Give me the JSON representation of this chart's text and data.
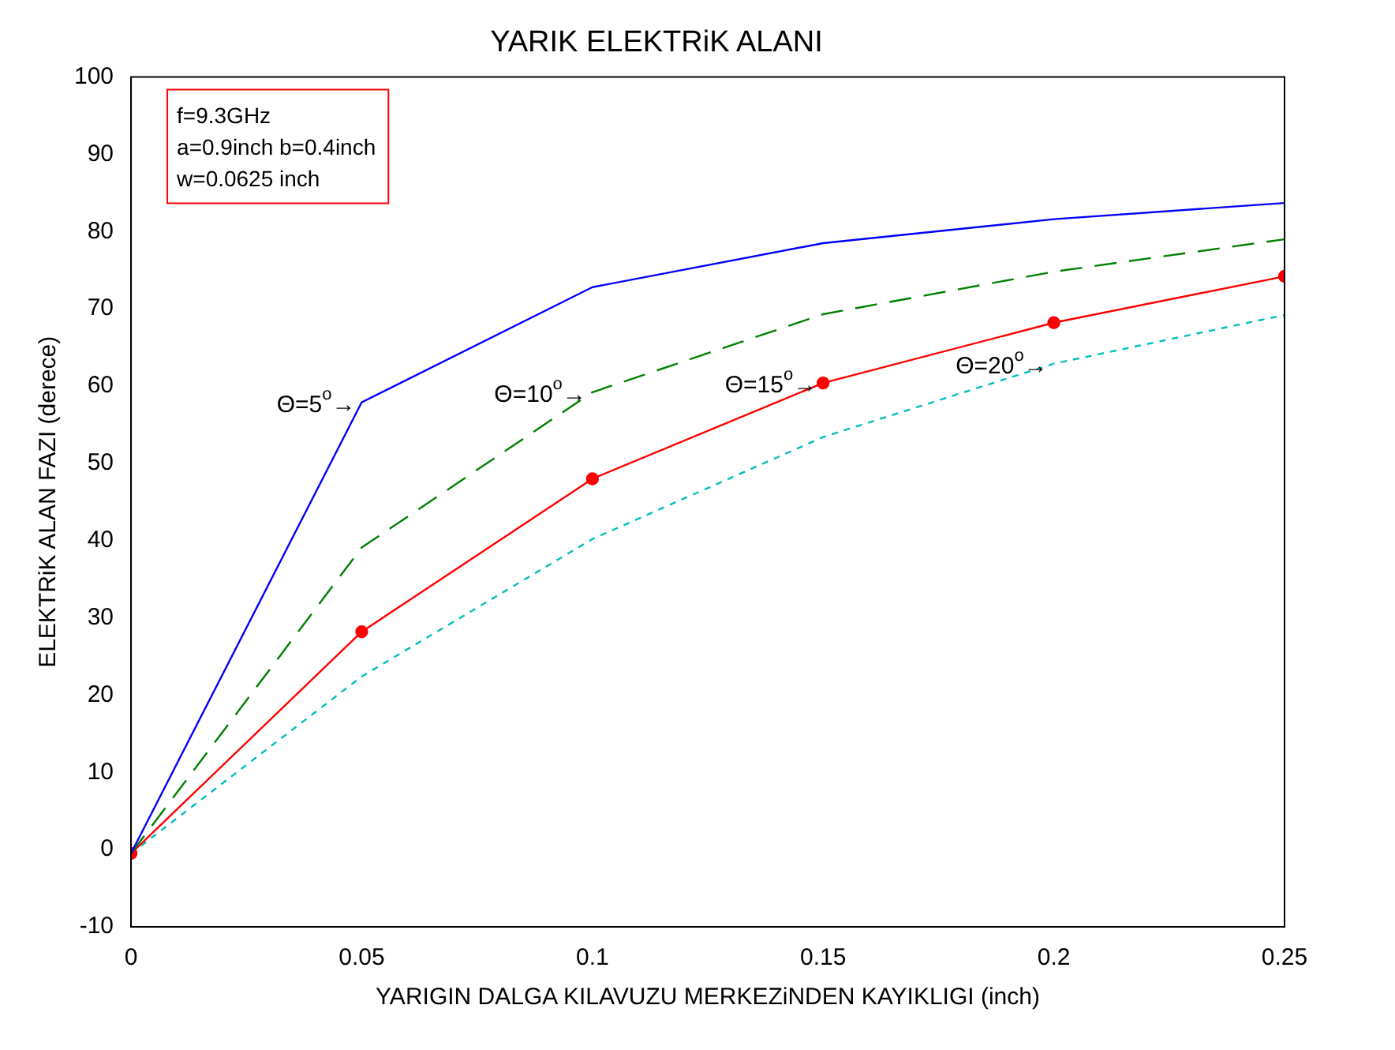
{
  "chart_data": {
    "type": "line",
    "title": "YARIK ELEKTRiK ALANI",
    "xlabel": "YARIGIN DALGA KILAVUZU MERKEZiNDEN KAYIKLIGI (inch)",
    "ylabel": "ELEKTRiK ALAN FAZI (derece)",
    "x": [
      0,
      0.05,
      0.1,
      0.15,
      0.2,
      0.25
    ],
    "xlim": [
      0,
      0.25
    ],
    "xticks": [
      0,
      0.05,
      0.1,
      0.15,
      0.2,
      0.25
    ],
    "ylim": [
      -10,
      100
    ],
    "yticks": [
      -10,
      0,
      10,
      20,
      30,
      40,
      50,
      60,
      70,
      80,
      90,
      100
    ],
    "legend": false,
    "series": [
      {
        "color": "#0000ff",
        "line_style": "solid",
        "marker": "none",
        "values": [
          -0.5,
          57.9,
          72.8,
          78.5,
          81.6,
          83.7
        ]
      },
      {
        "color": "#008000",
        "line_style": "dashed",
        "marker": "none",
        "values": [
          -0.5,
          39.1,
          59.2,
          69.3,
          74.8,
          79
        ]
      },
      {
        "color": "#ff0000",
        "line_style": "solid",
        "marker": "circle",
        "values": [
          -0.5,
          28.2,
          48,
          60.4,
          68.2,
          74.2
        ]
      },
      {
        "color": "#00bfbf",
        "line_style": "dotted",
        "marker": "none",
        "values": [
          -0.5,
          22.4,
          40.2,
          53.4,
          62.9,
          69.2
        ]
      }
    ],
    "annotations": [
      {
        "text": "Θ=5$^{o}$→",
        "x": 0.05,
        "y": 57.9
      },
      {
        "text": "Θ=10$^{o}$→",
        "x": 0.1,
        "y": 59.2
      },
      {
        "text": "Θ=15$^{o}$→",
        "x": 0.15,
        "y": 60.4
      },
      {
        "text": "Θ=20$^{o}$→",
        "x": 0.2,
        "y": 62.9
      },
      "f=9.3GHz\na=0.9inch b=0.4inch\nw=0.0625 inch"
    ]
  }
}
